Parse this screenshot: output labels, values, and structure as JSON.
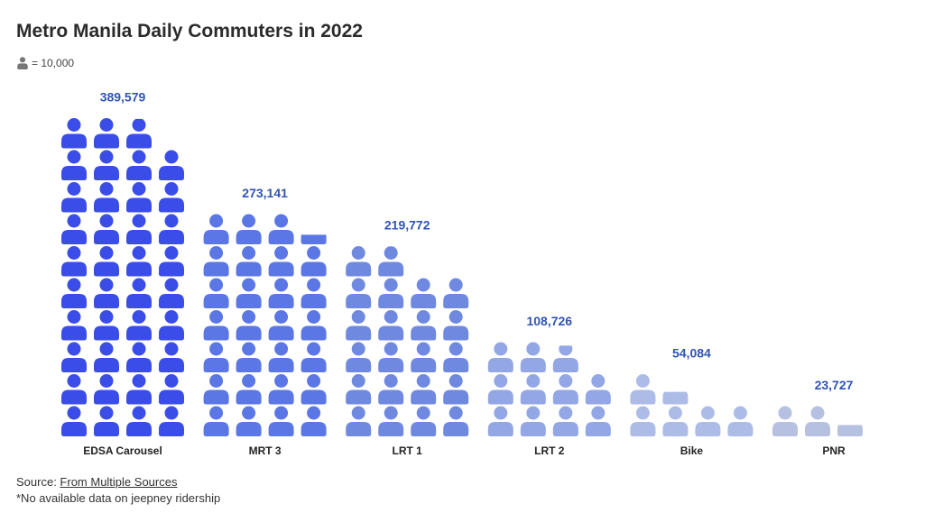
{
  "title": "Metro Manila Daily Commuters in 2022",
  "legend": {
    "icon": "person-icon",
    "label": "= 10,000"
  },
  "chart_data": {
    "type": "pictogram",
    "title": "Metro Manila Daily Commuters in 2022",
    "unit_per_icon": 10000,
    "icons_per_row": 4,
    "categories": [
      "EDSA Carousel",
      "MRT 3",
      "LRT 1",
      "LRT 2",
      "Bike",
      "PNR"
    ],
    "values": [
      389579,
      273141,
      219772,
      108726,
      54084,
      23727
    ],
    "value_labels": [
      "389,579",
      "273,141",
      "219,772",
      "108,726",
      "54,084",
      "23,727"
    ],
    "colors": [
      "#3a4de9",
      "#5b77e6",
      "#7089e0",
      "#93a6e5",
      "#adbce7",
      "#b6c0e1"
    ],
    "label_color": "#2f55b0"
  },
  "footer": {
    "source_prefix": "Source: ",
    "source_link": "From Multiple Sources",
    "note": "*No available data on jeepney ridership"
  }
}
